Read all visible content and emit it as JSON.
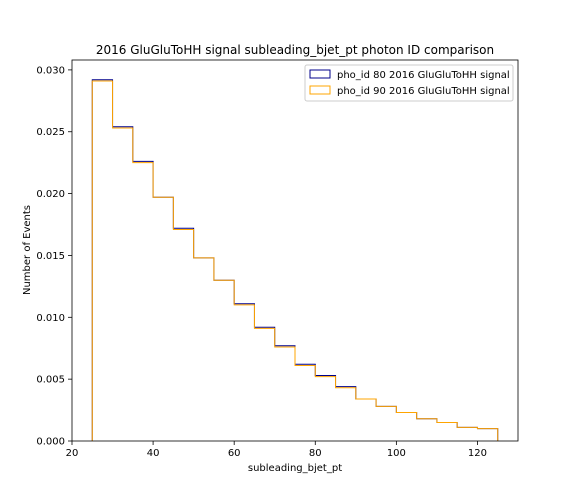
{
  "chart_data": {
    "type": "step",
    "title": "2016 GluGluToHH signal subleading_bjet_pt photon ID comparison",
    "xlabel": "subleading_bjet_pt",
    "ylabel": "Number of Events",
    "xlim": [
      20,
      130
    ],
    "ylim": [
      0,
      0.0308
    ],
    "xticks": [
      "20",
      "40",
      "60",
      "80",
      "100",
      "120"
    ],
    "yticks": [
      "0.000",
      "0.005",
      "0.010",
      "0.015",
      "0.020",
      "0.025",
      "0.030"
    ],
    "bin_edges": [
      25,
      30,
      35,
      40,
      45,
      50,
      55,
      60,
      65,
      70,
      75,
      80,
      85,
      90,
      95,
      100,
      105,
      110,
      115,
      120,
      125
    ],
    "series": [
      {
        "name": "pho_id 80 2016 GluGluToHH signal",
        "color": "#00008b",
        "values": [
          0.0292,
          0.0254,
          0.0226,
          0.0197,
          0.0172,
          0.0148,
          0.013,
          0.0111,
          0.0092,
          0.0077,
          0.0062,
          0.0053,
          0.0044,
          0.0034,
          0.0028,
          0.0023,
          0.0018,
          0.0015,
          0.0011,
          0.001
        ]
      },
      {
        "name": "pho_id 90 2016 GluGluToHH signal",
        "color": "#ffa500",
        "values": [
          0.0291,
          0.0253,
          0.0225,
          0.0197,
          0.0171,
          0.0148,
          0.013,
          0.011,
          0.0091,
          0.0076,
          0.0061,
          0.0052,
          0.0043,
          0.0034,
          0.0028,
          0.0023,
          0.0018,
          0.0015,
          0.0011,
          0.001
        ]
      }
    ],
    "legend_position": "top-right",
    "grid": false
  }
}
